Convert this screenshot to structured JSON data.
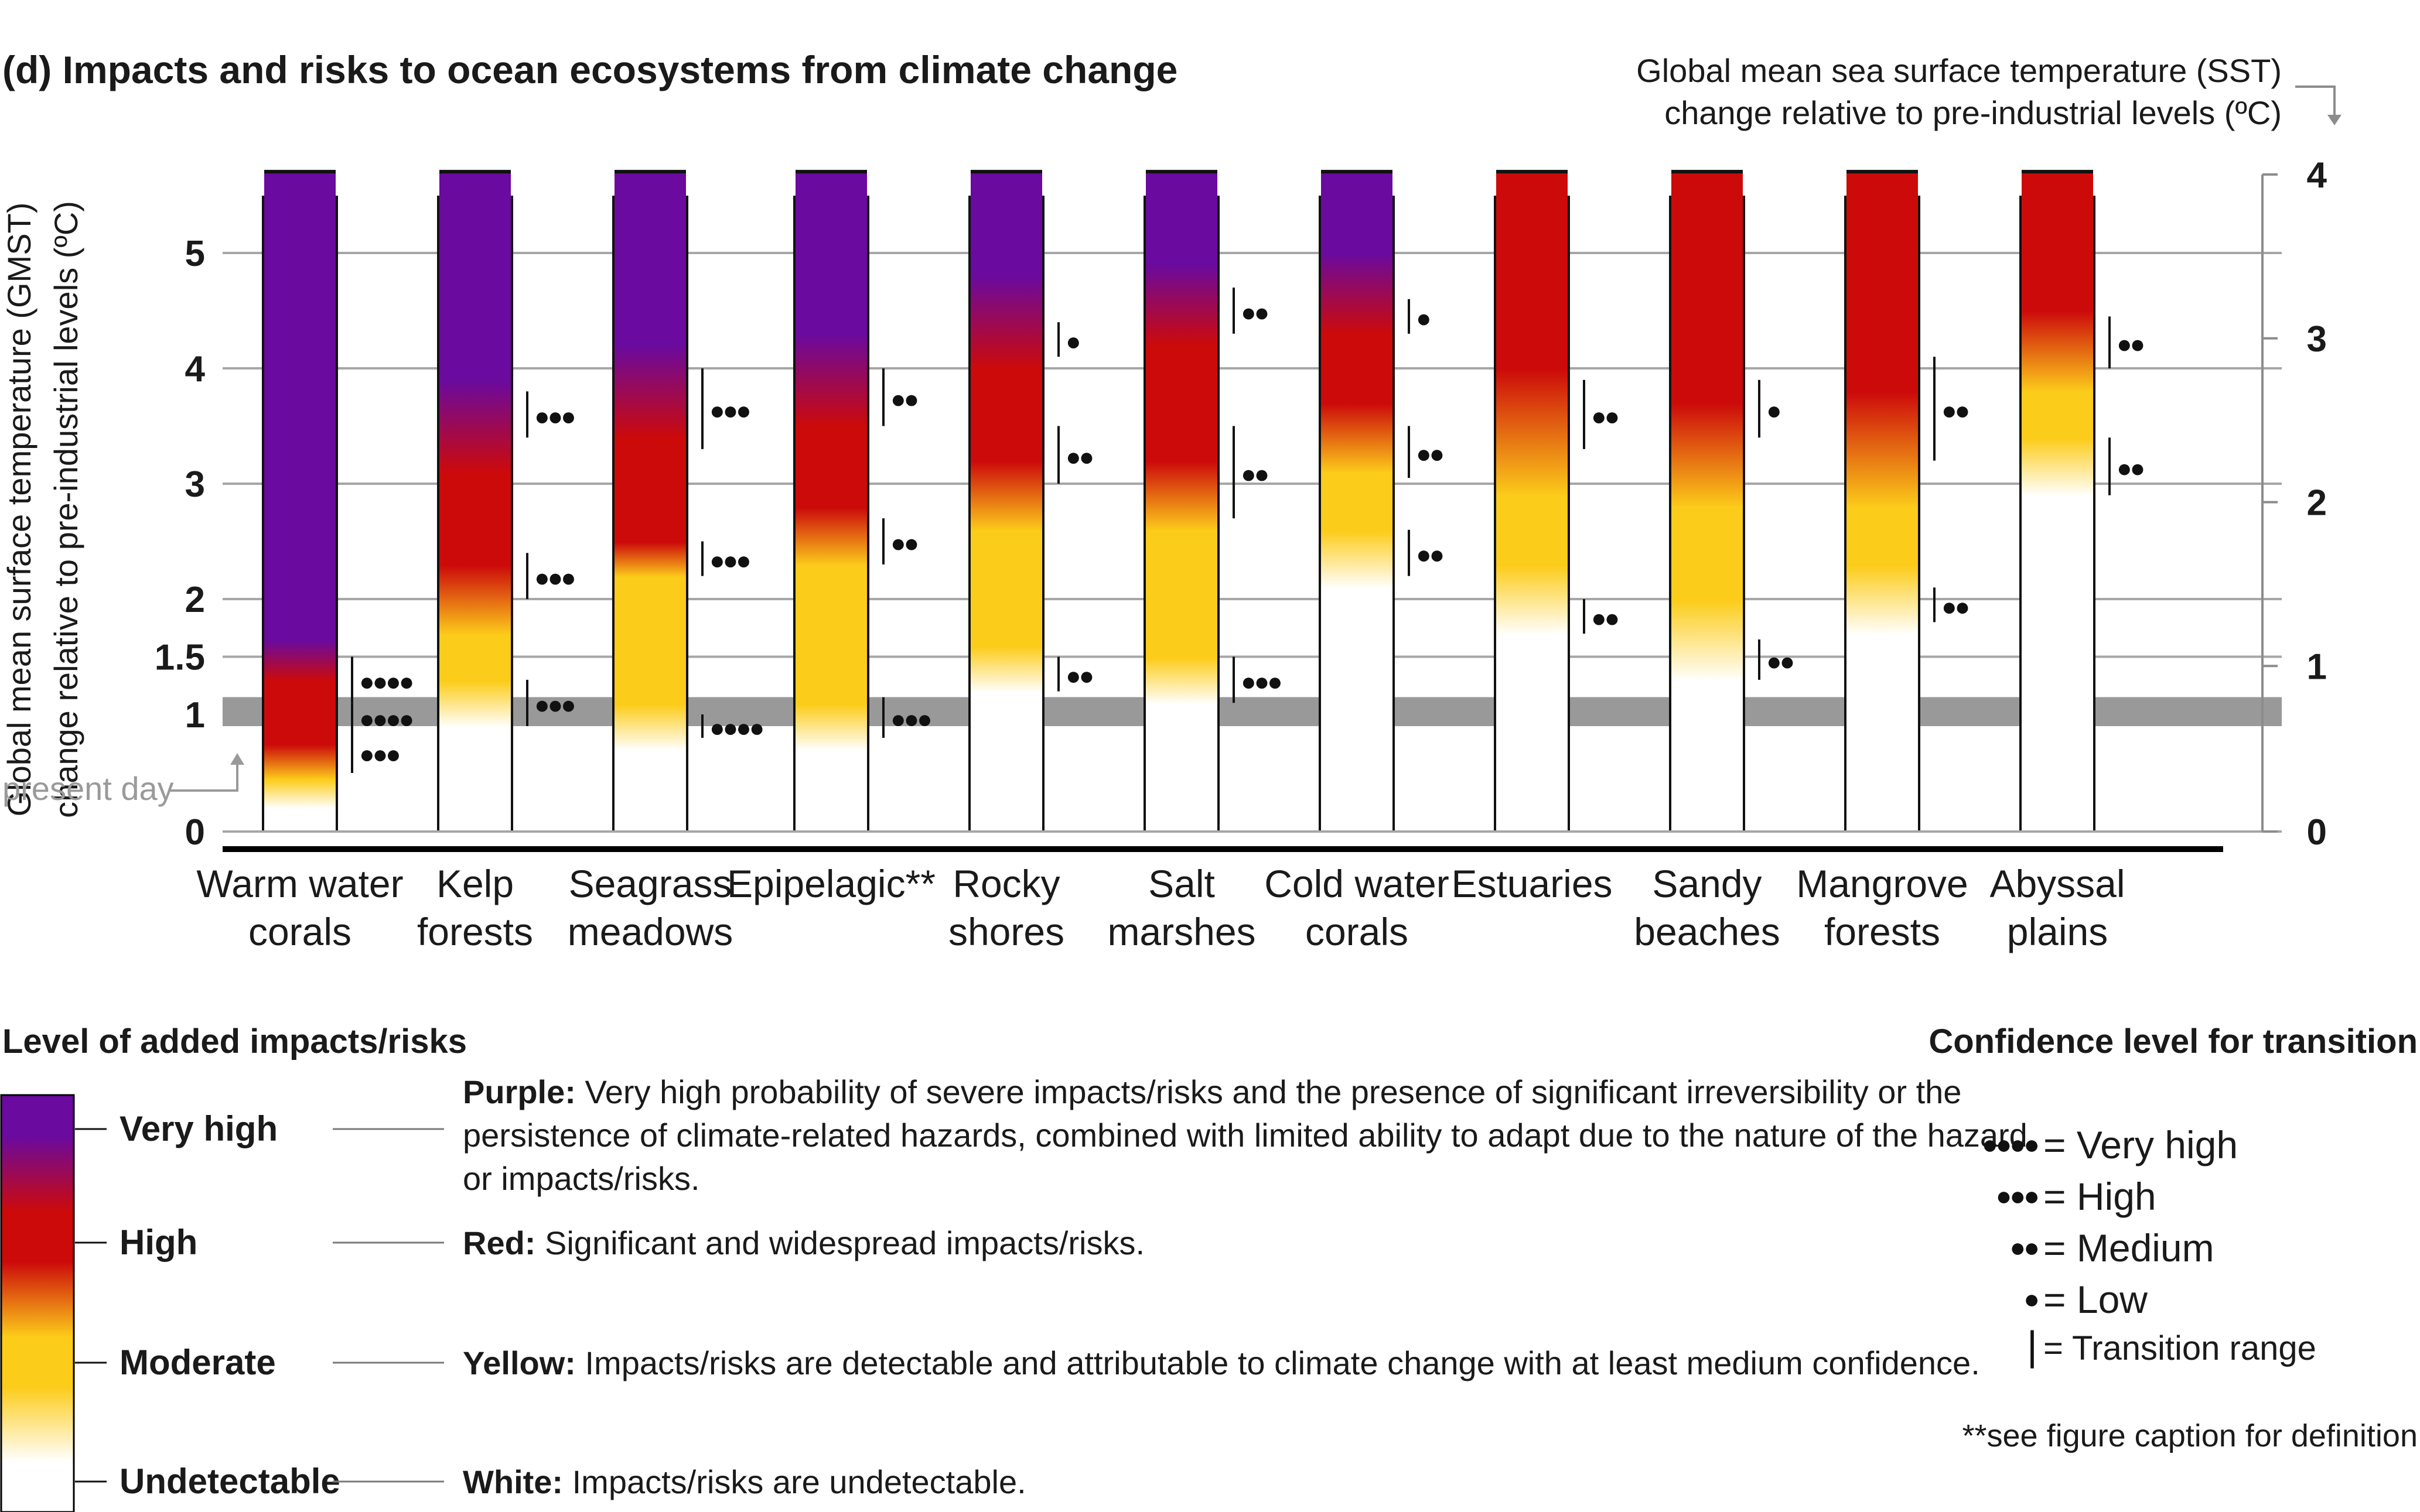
{
  "chart_data": {
    "type": "heatmap",
    "title": "(d) Impacts and risks to ocean ecosystems from climate change",
    "left_axis": {
      "label_line1": "Global mean surface temperature (GMST)",
      "label_line2": "change relative to pre-industrial levels (ºC)",
      "ticks": [
        0,
        1,
        1.5,
        2,
        3,
        4,
        5
      ],
      "tick_labels": [
        "0",
        "1",
        "1.5",
        "2",
        "3",
        "4",
        "5"
      ],
      "range": [
        0,
        5.7
      ]
    },
    "right_axis": {
      "label_line1": "Global mean sea surface temperature (SST)",
      "label_line2": "change relative to pre-industrial levels (ºC)",
      "ticks": [
        0,
        1,
        2,
        3,
        4
      ],
      "tick_labels": [
        "0",
        "1",
        "2",
        "3",
        "4"
      ],
      "gmst_per_sst": 1.42
    },
    "present_day": {
      "label": "present day",
      "band": [
        0.9,
        1.15
      ]
    },
    "gridlines": [
      1.5,
      2,
      3,
      4,
      5
    ],
    "colors": {
      "purple": "#6a0a9e",
      "red": "#cc0a0a",
      "yellow": "#fccc1a",
      "white": "#ffffff",
      "band": "#999999",
      "grid": "#a6a6a6"
    },
    "risk_levels": [
      "white",
      "yellow",
      "red",
      "purple"
    ],
    "ecosystems": [
      {
        "name": "Warm water corals",
        "line1": "Warm water",
        "line2": "corals",
        "top": 5.7,
        "stops": [
          [
            0.2,
            "white"
          ],
          [
            0.45,
            "yellow"
          ],
          [
            0.75,
            "red"
          ],
          [
            1.3,
            "red"
          ],
          [
            1.65,
            "purple"
          ]
        ],
        "transitions": [
          {
            "range": [
              1.1,
              1.5
            ],
            "label": "●●●●"
          },
          {
            "range": [
              0.85,
              1.1
            ],
            "label": "●●●●"
          },
          {
            "range": [
              0.5,
              0.85
            ],
            "label": "●●●"
          }
        ]
      },
      {
        "name": "Kelp forests",
        "line1": "Kelp",
        "line2": "forests",
        "top": 5.7,
        "stops": [
          [
            0.9,
            "white"
          ],
          [
            1.3,
            "yellow"
          ],
          [
            1.7,
            "yellow"
          ],
          [
            2.3,
            "red"
          ],
          [
            3.1,
            "red"
          ],
          [
            3.9,
            "purple"
          ]
        ],
        "transitions": [
          {
            "range": [
              3.4,
              3.8
            ],
            "label": "●●●"
          },
          {
            "range": [
              2,
              2.4
            ],
            "label": "●●●"
          },
          {
            "range": [
              0.9,
              1.3
            ],
            "label": "●●●"
          }
        ]
      },
      {
        "name": "Seagrass meadows",
        "line1": "Seagrass",
        "line2": "meadows",
        "top": 5.7,
        "stops": [
          [
            0.7,
            "white"
          ],
          [
            1.1,
            "yellow"
          ],
          [
            2.2,
            "yellow"
          ],
          [
            2.5,
            "red"
          ],
          [
            3.4,
            "red"
          ],
          [
            4.2,
            "purple"
          ]
        ],
        "transitions": [
          {
            "range": [
              3.3,
              4
            ],
            "label": "●●●"
          },
          {
            "range": [
              2.2,
              2.5
            ],
            "label": "●●●"
          },
          {
            "range": [
              0.8,
              1
            ],
            "label": "●●●●"
          }
        ]
      },
      {
        "name": "Epipelagic**",
        "line1": "Epipelagic**",
        "line2": "",
        "top": 5.7,
        "stops": [
          [
            0.7,
            "white"
          ],
          [
            1.1,
            "yellow"
          ],
          [
            2.3,
            "yellow"
          ],
          [
            2.8,
            "red"
          ],
          [
            3.5,
            "red"
          ],
          [
            4.3,
            "purple"
          ]
        ],
        "transitions": [
          {
            "range": [
              3.5,
              4
            ],
            "label": "●●"
          },
          {
            "range": [
              2.3,
              2.7
            ],
            "label": "●●"
          },
          {
            "range": [
              0.8,
              1.15
            ],
            "label": "●●●"
          }
        ]
      },
      {
        "name": "Rocky shores",
        "line1": "Rocky",
        "line2": "shores",
        "top": 5.7,
        "stops": [
          [
            1.2,
            "white"
          ],
          [
            1.6,
            "yellow"
          ],
          [
            2.6,
            "yellow"
          ],
          [
            3.2,
            "red"
          ],
          [
            4,
            "red"
          ],
          [
            4.8,
            "purple"
          ]
        ],
        "transitions": [
          {
            "range": [
              4.1,
              4.4
            ],
            "label": "●"
          },
          {
            "range": [
              3,
              3.5
            ],
            "label": "●●"
          },
          {
            "range": [
              1.2,
              1.5
            ],
            "label": "●●"
          }
        ]
      },
      {
        "name": "Salt marshes",
        "line1": "Salt",
        "line2": "marshes",
        "top": 5.7,
        "stops": [
          [
            1.1,
            "white"
          ],
          [
            1.5,
            "yellow"
          ],
          [
            2.6,
            "yellow"
          ],
          [
            3.2,
            "red"
          ],
          [
            4.2,
            "red"
          ],
          [
            4.9,
            "purple"
          ]
        ],
        "transitions": [
          {
            "range": [
              4.3,
              4.7
            ],
            "label": "●●"
          },
          {
            "range": [
              2.7,
              3.5
            ],
            "label": "●●"
          },
          {
            "range": [
              1.1,
              1.5
            ],
            "label": "●●●"
          }
        ]
      },
      {
        "name": "Cold water corals",
        "line1": "Cold water",
        "line2": "corals",
        "top": 5.7,
        "stops": [
          [
            2.1,
            "white"
          ],
          [
            2.6,
            "yellow"
          ],
          [
            3.1,
            "yellow"
          ],
          [
            3.7,
            "red"
          ],
          [
            4.3,
            "red"
          ],
          [
            5,
            "purple"
          ]
        ],
        "transitions": [
          {
            "range": [
              4.3,
              4.6
            ],
            "label": "●"
          },
          {
            "range": [
              3.05,
              3.5
            ],
            "label": "●●"
          },
          {
            "range": [
              2.2,
              2.6
            ],
            "label": "●●"
          }
        ]
      },
      {
        "name": "Estuaries",
        "line1": "Estuaries",
        "line2": "",
        "top": 5.7,
        "stops": [
          [
            1.7,
            "white"
          ],
          [
            2.3,
            "yellow"
          ],
          [
            2.9,
            "yellow"
          ],
          [
            4,
            "red"
          ]
        ],
        "transitions": [
          {
            "range": [
              3.3,
              3.9
            ],
            "label": "●●"
          },
          {
            "range": [
              1.7,
              2
            ],
            "label": "●●"
          }
        ]
      },
      {
        "name": "Sandy beaches",
        "line1": "Sandy",
        "line2": "beaches",
        "top": 5.7,
        "stops": [
          [
            1.3,
            "white"
          ],
          [
            2,
            "yellow"
          ],
          [
            2.8,
            "yellow"
          ],
          [
            3.7,
            "red"
          ]
        ],
        "transitions": [
          {
            "range": [
              3.4,
              3.9
            ],
            "label": "●"
          },
          {
            "range": [
              1.3,
              1.65
            ],
            "label": "●●"
          }
        ]
      },
      {
        "name": "Mangrove forests",
        "line1": "Mangrove",
        "line2": "forests",
        "top": 5.7,
        "stops": [
          [
            1.7,
            "white"
          ],
          [
            2.3,
            "yellow"
          ],
          [
            2.8,
            "yellow"
          ],
          [
            3.8,
            "red"
          ]
        ],
        "transitions": [
          {
            "range": [
              3.2,
              4.1
            ],
            "label": "●●"
          },
          {
            "range": [
              1.8,
              2.1
            ],
            "label": "●●"
          }
        ]
      },
      {
        "name": "Abyssal plains",
        "line1": "Abyssal",
        "line2": "plains",
        "top": 5.7,
        "stops": [
          [
            2.9,
            "white"
          ],
          [
            3.4,
            "yellow"
          ],
          [
            3.8,
            "yellow"
          ],
          [
            4.5,
            "red"
          ]
        ],
        "transitions": [
          {
            "range": [
              4,
              4.45
            ],
            "label": "●●"
          },
          {
            "range": [
              2.9,
              3.4
            ],
            "label": "●●"
          }
        ]
      }
    ],
    "legend": {
      "title": "Level of added impacts/risks",
      "levels": [
        {
          "label": "Very high",
          "name": "Purple:",
          "text_lines": [
            "Very high probability of severe impacts/risks and the presence of significant irreversibility or the",
            "persistence of climate-related hazards, combined with limited ability to adapt due to the nature of the hazard",
            "or impacts/risks."
          ]
        },
        {
          "label": "High",
          "name": "Red:",
          "text_lines": [
            "Significant and widespread impacts/risks."
          ]
        },
        {
          "label": "Moderate",
          "name": "Yellow:",
          "text_lines": [
            "Impacts/risks are detectable and attributable to climate change with at least medium confidence."
          ]
        },
        {
          "label": "Undetectable",
          "name": "White:",
          "text_lines": [
            "Impacts/risks are undetectable."
          ]
        }
      ]
    },
    "confidence": {
      "title": "Confidence level for transition",
      "items": [
        {
          "dots": "●●●●",
          "label": "= Very high"
        },
        {
          "dots": "●●●",
          "label": "= High"
        },
        {
          "dots": "●●",
          "label": "= Medium"
        },
        {
          "dots": "●",
          "label": "= Low"
        },
        {
          "dots": "|",
          "label": "= Transition range"
        }
      ],
      "footnote": "**see figure caption for definition"
    }
  }
}
